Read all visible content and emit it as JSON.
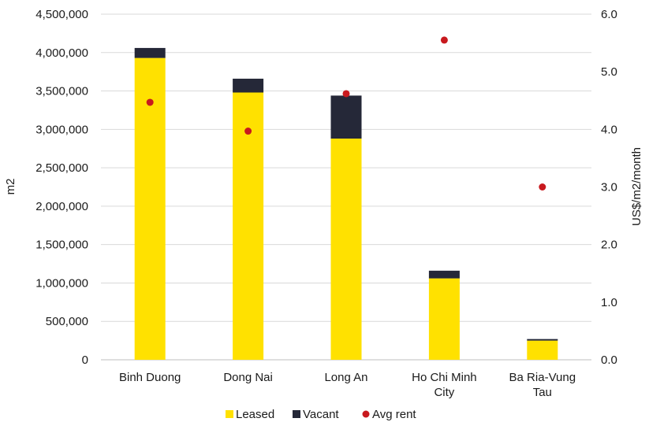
{
  "chart_data": {
    "type": "bar",
    "stacked": true,
    "categories": [
      [
        "Binh Duong"
      ],
      [
        "Dong Nai"
      ],
      [
        "Long An"
      ],
      [
        "Ho Chi Minh",
        "City"
      ],
      [
        "Ba Ria-Vung",
        "Tau"
      ]
    ],
    "series": [
      {
        "name": "Leased",
        "axis": "left",
        "kind": "bar",
        "color": "#FFE100",
        "values": [
          3930000,
          3480000,
          2880000,
          1060000,
          250000
        ]
      },
      {
        "name": "Vacant",
        "axis": "left",
        "kind": "bar",
        "color": "#252838",
        "values": [
          130000,
          180000,
          560000,
          100000,
          20000
        ]
      },
      {
        "name": "Avg rent",
        "axis": "right",
        "kind": "scatter",
        "color": "#C8191E",
        "values": [
          4.47,
          3.97,
          4.62,
          5.55,
          3.0
        ]
      }
    ],
    "y_left": {
      "label": "m2",
      "min": 0,
      "max": 4500000,
      "ticks": [
        "0",
        "500,000",
        "1,000,000",
        "1,500,000",
        "2,000,000",
        "2,500,000",
        "3,000,000",
        "3,500,000",
        "4,000,000",
        "4,500,000"
      ],
      "tick_values": [
        0,
        500000,
        1000000,
        1500000,
        2000000,
        2500000,
        3000000,
        3500000,
        4000000,
        4500000
      ]
    },
    "y_right": {
      "label": "US$/m2/month",
      "min": 0,
      "max": 6,
      "ticks": [
        "0.0",
        "1.0",
        "2.0",
        "3.0",
        "4.0",
        "5.0",
        "6.0"
      ],
      "tick_values": [
        0,
        1,
        2,
        3,
        4,
        5,
        6
      ]
    },
    "grid": true,
    "legend": {
      "position": "bottom",
      "items": [
        "Leased",
        "Vacant",
        "Avg rent"
      ]
    }
  }
}
